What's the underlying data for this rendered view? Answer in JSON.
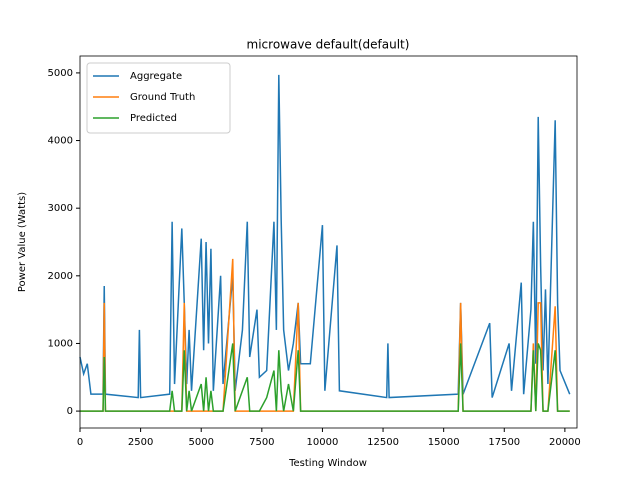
{
  "chart_data": {
    "type": "line",
    "title": "microwave default(default)",
    "x_label": "Testing Window",
    "y_label": "Power Value (Watts)",
    "x": [
      0,
      150,
      300,
      450,
      950,
      1000,
      1050,
      2400,
      2450,
      2500,
      3700,
      3800,
      3900,
      4200,
      4300,
      4400,
      4500,
      4600,
      5000,
      5100,
      5200,
      5300,
      5400,
      5500,
      5800,
      5900,
      6300,
      6400,
      6700,
      6900,
      7000,
      7300,
      7400,
      7700,
      8000,
      8100,
      8200,
      8300,
      8400,
      8600,
      8800,
      9000,
      9100,
      9500,
      10000,
      10100,
      10600,
      10700,
      12650,
      12700,
      12750,
      15600,
      15700,
      15800,
      16900,
      17000,
      17700,
      17800,
      18200,
      18300,
      18600,
      18700,
      18800,
      18900,
      19000,
      19100,
      19200,
      19300,
      19600,
      19700,
      19800,
      20200
    ],
    "series": [
      {
        "name": "Aggregate",
        "color": "#1f77b4",
        "values": [
          800,
          550,
          700,
          250,
          250,
          1850,
          250,
          200,
          1200,
          200,
          250,
          2800,
          400,
          2700,
          1600,
          400,
          1200,
          300,
          2550,
          900,
          2500,
          1000,
          2400,
          300,
          2000,
          400,
          2000,
          300,
          1200,
          2800,
          800,
          1500,
          500,
          600,
          2800,
          1200,
          4970,
          2800,
          1200,
          600,
          1000,
          1600,
          700,
          700,
          2750,
          300,
          2450,
          300,
          200,
          1000,
          200,
          250,
          1600,
          250,
          1300,
          200,
          1000,
          300,
          1900,
          250,
          1500,
          2800,
          700,
          4350,
          2150,
          600,
          1800,
          400,
          4300,
          1600,
          600,
          250
        ]
      },
      {
        "name": "Ground Truth",
        "color": "#ff7f0e",
        "values": [
          0,
          0,
          0,
          0,
          0,
          1600,
          0,
          0,
          0,
          0,
          0,
          0,
          0,
          0,
          1600,
          0,
          0,
          0,
          0,
          0,
          0,
          0,
          0,
          0,
          0,
          0,
          2250,
          0,
          0,
          0,
          0,
          0,
          0,
          0,
          0,
          0,
          0,
          0,
          0,
          0,
          0,
          1600,
          0,
          0,
          0,
          0,
          0,
          0,
          0,
          0,
          0,
          0,
          1600,
          0,
          0,
          0,
          0,
          0,
          0,
          0,
          0,
          1000,
          0,
          1600,
          1600,
          0,
          0,
          0,
          1550,
          0,
          0,
          0
        ]
      },
      {
        "name": "Predicted",
        "color": "#2ca02c",
        "values": [
          0,
          0,
          0,
          0,
          0,
          800,
          0,
          0,
          0,
          0,
          0,
          300,
          0,
          0,
          900,
          0,
          300,
          0,
          400,
          0,
          500,
          0,
          300,
          0,
          0,
          0,
          1000,
          0,
          300,
          500,
          0,
          0,
          0,
          200,
          600,
          0,
          900,
          300,
          0,
          400,
          0,
          900,
          0,
          0,
          0,
          0,
          0,
          0,
          0,
          0,
          0,
          0,
          1000,
          0,
          0,
          0,
          0,
          0,
          0,
          0,
          0,
          900,
          0,
          1000,
          900,
          0,
          0,
          0,
          900,
          0,
          0,
          0
        ]
      }
    ],
    "xlim": [
      0,
      20500
    ],
    "ylim": [
      -250,
      5250
    ],
    "xticks": [
      0,
      2500,
      5000,
      7500,
      10000,
      12500,
      15000,
      17500,
      20000
    ],
    "yticks": [
      0,
      1000,
      2000,
      3000,
      4000,
      5000
    ],
    "legend": "upper left"
  }
}
